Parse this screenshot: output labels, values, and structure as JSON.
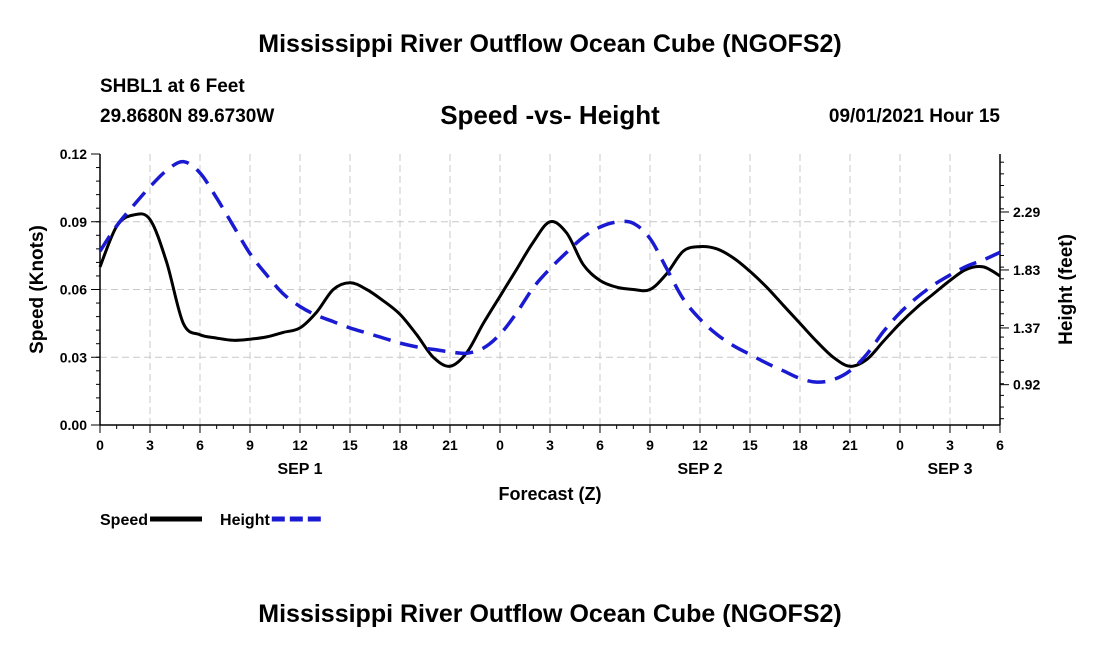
{
  "header": {
    "title_top": "Mississippi River Outflow Ocean Cube (NGOFS2)",
    "title_bottom": "Mississippi River Outflow Ocean Cube (NGOFS2)",
    "station": "SHBL1 at 6 Feet",
    "coords": "29.8680N  89.6730W",
    "plot_title": "Speed -vs- Height",
    "timestamp": "09/01/2021 Hour 15"
  },
  "chart_data": {
    "type": "line",
    "title": "Speed -vs- Height",
    "xlabel": "Forecast (Z)",
    "ylabel": "Speed (Knots)",
    "y2label": "Height (feet)",
    "x_hours_range": [
      0,
      54
    ],
    "x_ticks": [
      {
        "h": 0,
        "label": "0"
      },
      {
        "h": 3,
        "label": "3"
      },
      {
        "h": 6,
        "label": "6"
      },
      {
        "h": 9,
        "label": "9"
      },
      {
        "h": 12,
        "label": "12"
      },
      {
        "h": 15,
        "label": "15"
      },
      {
        "h": 18,
        "label": "18"
      },
      {
        "h": 21,
        "label": "21"
      },
      {
        "h": 24,
        "label": "0"
      },
      {
        "h": 27,
        "label": "3"
      },
      {
        "h": 30,
        "label": "6"
      },
      {
        "h": 33,
        "label": "9"
      },
      {
        "h": 36,
        "label": "12"
      },
      {
        "h": 39,
        "label": "15"
      },
      {
        "h": 42,
        "label": "18"
      },
      {
        "h": 45,
        "label": "21"
      },
      {
        "h": 48,
        "label": "0"
      },
      {
        "h": 51,
        "label": "3"
      },
      {
        "h": 54,
        "label": "6"
      }
    ],
    "date_labels": [
      {
        "h": 12,
        "label": "SEP 1"
      },
      {
        "h": 36,
        "label": "SEP 2"
      },
      {
        "h": 51,
        "label": "SEP 3"
      }
    ],
    "ylim": [
      0,
      0.12
    ],
    "y_ticks": [
      "0.00",
      "0.03",
      "0.06",
      "0.09",
      "0.12"
    ],
    "y2lim": [
      0.6,
      2.75
    ],
    "y2_ticks": [
      "0.92",
      "1.37",
      "1.83",
      "2.29"
    ],
    "grid": true,
    "series": [
      {
        "name": "Speed",
        "axis": "left",
        "color": "#000000",
        "dash": "solid",
        "points": [
          [
            0,
            0.07
          ],
          [
            1,
            0.088
          ],
          [
            2,
            0.093
          ],
          [
            3,
            0.091
          ],
          [
            4,
            0.072
          ],
          [
            5,
            0.045
          ],
          [
            6,
            0.04
          ],
          [
            7,
            0.0385
          ],
          [
            8,
            0.0375
          ],
          [
            9,
            0.038
          ],
          [
            10,
            0.039
          ],
          [
            11,
            0.041
          ],
          [
            12,
            0.043
          ],
          [
            13,
            0.05
          ],
          [
            14,
            0.06
          ],
          [
            15,
            0.063
          ],
          [
            16,
            0.06
          ],
          [
            17,
            0.055
          ],
          [
            18,
            0.049
          ],
          [
            19,
            0.04
          ],
          [
            20,
            0.03
          ],
          [
            21,
            0.026
          ],
          [
            22,
            0.032
          ],
          [
            23,
            0.045
          ],
          [
            24,
            0.057
          ],
          [
            25,
            0.069
          ],
          [
            26,
            0.081
          ],
          [
            27,
            0.09
          ],
          [
            28,
            0.085
          ],
          [
            29,
            0.071
          ],
          [
            30,
            0.064
          ],
          [
            31,
            0.061
          ],
          [
            32,
            0.06
          ],
          [
            33,
            0.06
          ],
          [
            34,
            0.067
          ],
          [
            35,
            0.077
          ],
          [
            36,
            0.079
          ],
          [
            37,
            0.078
          ],
          [
            38,
            0.074
          ],
          [
            39,
            0.068
          ],
          [
            40,
            0.061
          ],
          [
            41,
            0.053
          ],
          [
            42,
            0.045
          ],
          [
            43,
            0.037
          ],
          [
            44,
            0.03
          ],
          [
            45,
            0.026
          ],
          [
            46,
            0.029
          ],
          [
            47,
            0.037
          ],
          [
            48,
            0.045
          ],
          [
            49,
            0.052
          ],
          [
            50,
            0.058
          ],
          [
            51,
            0.064
          ],
          [
            52,
            0.069
          ],
          [
            53,
            0.07
          ],
          [
            54,
            0.066
          ]
        ]
      },
      {
        "name": "Height",
        "axis": "right",
        "color": "#1a1ad2",
        "dash": "dashed",
        "points": [
          [
            0,
            1.98
          ],
          [
            1,
            2.18
          ],
          [
            2,
            2.34
          ],
          [
            3,
            2.49
          ],
          [
            4,
            2.62
          ],
          [
            5,
            2.69
          ],
          [
            6,
            2.6
          ],
          [
            7,
            2.4
          ],
          [
            8,
            2.18
          ],
          [
            9,
            1.96
          ],
          [
            10,
            1.79
          ],
          [
            11,
            1.64
          ],
          [
            12,
            1.54
          ],
          [
            13,
            1.47
          ],
          [
            14,
            1.42
          ],
          [
            15,
            1.37
          ],
          [
            16,
            1.33
          ],
          [
            17,
            1.29
          ],
          [
            18,
            1.25
          ],
          [
            19,
            1.22
          ],
          [
            20,
            1.2
          ],
          [
            21,
            1.18
          ],
          [
            22,
            1.17
          ],
          [
            23,
            1.21
          ],
          [
            24,
            1.32
          ],
          [
            25,
            1.49
          ],
          [
            26,
            1.69
          ],
          [
            27,
            1.84
          ],
          [
            28,
            1.97
          ],
          [
            29,
            2.09
          ],
          [
            30,
            2.17
          ],
          [
            31,
            2.21
          ],
          [
            32,
            2.2
          ],
          [
            33,
            2.08
          ],
          [
            34,
            1.84
          ],
          [
            35,
            1.6
          ],
          [
            36,
            1.44
          ],
          [
            37,
            1.32
          ],
          [
            38,
            1.23
          ],
          [
            39,
            1.16
          ],
          [
            40,
            1.09
          ],
          [
            41,
            1.03
          ],
          [
            42,
            0.97
          ],
          [
            43,
            0.94
          ],
          [
            44,
            0.96
          ],
          [
            45,
            1.03
          ],
          [
            46,
            1.16
          ],
          [
            47,
            1.34
          ],
          [
            48,
            1.49
          ],
          [
            49,
            1.61
          ],
          [
            50,
            1.71
          ],
          [
            51,
            1.79
          ],
          [
            52,
            1.86
          ],
          [
            53,
            1.91
          ],
          [
            54,
            1.97
          ]
        ]
      }
    ],
    "legend": [
      {
        "label": "Speed",
        "color": "#000000",
        "dash": "solid"
      },
      {
        "label": "Height",
        "color": "#1a1ad2",
        "dash": "dashed"
      }
    ],
    "legend_position": "bottom-left"
  }
}
